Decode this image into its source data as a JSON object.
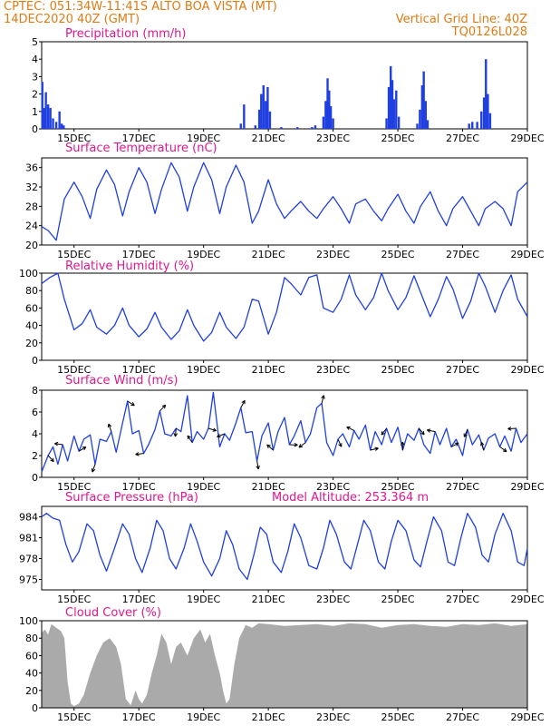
{
  "header": {
    "line1_left": "CPTEC:   051:34W-11:41S   ALTO BOA VISTA (MT)",
    "line2_left": "14DEC2020 40Z (GMT)",
    "line2_right": "Vertical Grid Line: 40Z",
    "line3_right": "TQ0126L028"
  },
  "colors": {
    "header": "#e07a12",
    "title": "#e0188c",
    "series": "#1f3fe0",
    "cloud": "#aaaaaa"
  },
  "date_ticks": [
    "15DEC",
    "17DEC",
    "19DEC",
    "21DEC",
    "23DEC",
    "25DEC",
    "27DEC",
    "29DEC"
  ],
  "chart_data": [
    {
      "type": "bar",
      "title": "Precipitation (mm/h)",
      "ylim": [
        0,
        5
      ],
      "yticks": [
        "0",
        "1",
        "2",
        "3",
        "4",
        "5"
      ],
      "x_unit": "day",
      "xlim": [
        14.0,
        29.0
      ],
      "events": [
        {
          "x": 14.02,
          "y": 2.7
        },
        {
          "x": 14.08,
          "y": 1.2
        },
        {
          "x": 14.13,
          "y": 2.1
        },
        {
          "x": 14.2,
          "y": 1.4
        },
        {
          "x": 14.27,
          "y": 1.2
        },
        {
          "x": 14.35,
          "y": 0.6
        },
        {
          "x": 14.45,
          "y": 0.4
        },
        {
          "x": 14.55,
          "y": 1.0
        },
        {
          "x": 14.62,
          "y": 0.3
        },
        {
          "x": 14.68,
          "y": 0.2
        },
        {
          "x": 20.15,
          "y": 0.3
        },
        {
          "x": 20.25,
          "y": 1.4
        },
        {
          "x": 20.6,
          "y": 0.2
        },
        {
          "x": 20.72,
          "y": 1.1
        },
        {
          "x": 20.78,
          "y": 2.0
        },
        {
          "x": 20.85,
          "y": 2.5
        },
        {
          "x": 20.92,
          "y": 1.6
        },
        {
          "x": 20.98,
          "y": 2.4
        },
        {
          "x": 21.05,
          "y": 1.0
        },
        {
          "x": 21.4,
          "y": 0.1
        },
        {
          "x": 21.9,
          "y": 0.1
        },
        {
          "x": 22.35,
          "y": 0.1
        },
        {
          "x": 22.45,
          "y": 0.2
        },
        {
          "x": 22.7,
          "y": 0.7
        },
        {
          "x": 22.77,
          "y": 1.6
        },
        {
          "x": 22.83,
          "y": 2.9
        },
        {
          "x": 22.88,
          "y": 2.2
        },
        {
          "x": 22.93,
          "y": 1.3
        },
        {
          "x": 23.0,
          "y": 0.6
        },
        {
          "x": 24.65,
          "y": 0.6
        },
        {
          "x": 24.72,
          "y": 2.4
        },
        {
          "x": 24.78,
          "y": 3.6
        },
        {
          "x": 24.83,
          "y": 2.8
        },
        {
          "x": 24.88,
          "y": 1.7
        },
        {
          "x": 24.95,
          "y": 2.2
        },
        {
          "x": 25.03,
          "y": 0.7
        },
        {
          "x": 25.6,
          "y": 0.3
        },
        {
          "x": 25.68,
          "y": 1.1
        },
        {
          "x": 25.75,
          "y": 2.5
        },
        {
          "x": 25.8,
          "y": 3.3
        },
        {
          "x": 25.86,
          "y": 1.6
        },
        {
          "x": 25.92,
          "y": 0.5
        },
        {
          "x": 27.2,
          "y": 0.3
        },
        {
          "x": 27.3,
          "y": 0.4
        },
        {
          "x": 27.45,
          "y": 0.4
        },
        {
          "x": 27.58,
          "y": 1.0
        },
        {
          "x": 27.66,
          "y": 1.8
        },
        {
          "x": 27.72,
          "y": 4.0
        },
        {
          "x": 27.78,
          "y": 2.0
        },
        {
          "x": 27.85,
          "y": 0.9
        }
      ]
    },
    {
      "type": "line",
      "title": "Surface Temperature (nC)",
      "ylim": [
        20,
        38
      ],
      "yticks": [
        "20",
        "24",
        "28",
        "32",
        "36"
      ],
      "x_unit": "day",
      "xlim": [
        14.0,
        29.0
      ],
      "x": [
        14.0,
        14.2,
        14.45,
        14.7,
        15.0,
        15.25,
        15.5,
        15.7,
        16.0,
        16.25,
        16.5,
        16.7,
        17.0,
        17.25,
        17.5,
        17.7,
        18.0,
        18.25,
        18.5,
        18.7,
        19.0,
        19.25,
        19.5,
        19.7,
        20.0,
        20.25,
        20.5,
        20.7,
        21.0,
        21.25,
        21.5,
        21.7,
        22.0,
        22.25,
        22.5,
        22.7,
        23.0,
        23.25,
        23.5,
        23.7,
        24.0,
        24.25,
        24.5,
        24.7,
        25.0,
        25.25,
        25.5,
        25.7,
        26.0,
        26.25,
        26.5,
        26.7,
        27.0,
        27.25,
        27.5,
        27.7,
        28.0,
        28.25,
        28.5,
        28.7,
        29.0
      ],
      "y": [
        23.8,
        23.0,
        21.0,
        29.5,
        33.0,
        30.0,
        25.5,
        31.5,
        35.5,
        32.5,
        26.0,
        31.0,
        36.0,
        33.0,
        26.5,
        31.5,
        37.0,
        34.0,
        27.0,
        32.0,
        37.0,
        33.5,
        26.5,
        32.0,
        36.5,
        33.0,
        24.5,
        27.0,
        33.5,
        28.5,
        25.5,
        27.0,
        29.0,
        27.0,
        25.5,
        27.5,
        30.0,
        27.5,
        24.5,
        28.5,
        29.5,
        27.0,
        25.0,
        27.5,
        30.5,
        27.0,
        24.5,
        28.0,
        31.0,
        27.0,
        24.0,
        27.5,
        30.0,
        27.0,
        24.0,
        27.5,
        29.0,
        27.5,
        24.0,
        31.0,
        33.0
      ]
    },
    {
      "type": "line",
      "title": "Relative Humidity (%)",
      "ylim": [
        0,
        100
      ],
      "yticks": [
        "0",
        "20",
        "40",
        "60",
        "80",
        "100"
      ],
      "x_unit": "day",
      "xlim": [
        14.0,
        29.0
      ],
      "x": [
        14.0,
        14.25,
        14.5,
        14.7,
        15.0,
        15.25,
        15.5,
        15.7,
        16.0,
        16.25,
        16.5,
        16.7,
        17.0,
        17.25,
        17.5,
        17.7,
        18.0,
        18.25,
        18.5,
        18.7,
        19.0,
        19.25,
        19.5,
        19.7,
        20.0,
        20.25,
        20.5,
        20.7,
        21.0,
        21.25,
        21.5,
        21.7,
        22.0,
        22.25,
        22.5,
        22.7,
        23.0,
        23.25,
        23.5,
        23.7,
        24.0,
        24.25,
        24.5,
        24.7,
        25.0,
        25.25,
        25.5,
        25.7,
        26.0,
        26.25,
        26.5,
        26.7,
        27.0,
        27.25,
        27.5,
        27.7,
        28.0,
        28.25,
        28.5,
        28.7,
        29.0
      ],
      "y": [
        88,
        95,
        100,
        70,
        35,
        42,
        58,
        38,
        30,
        40,
        60,
        40,
        27,
        36,
        55,
        38,
        24,
        34,
        58,
        40,
        22,
        32,
        55,
        38,
        25,
        38,
        70,
        68,
        30,
        55,
        95,
        88,
        75,
        95,
        98,
        60,
        55,
        70,
        98,
        75,
        58,
        72,
        100,
        80,
        58,
        72,
        97,
        78,
        50,
        70,
        96,
        82,
        48,
        68,
        100,
        85,
        55,
        80,
        98,
        70,
        50
      ]
    },
    {
      "type": "line",
      "title": "Surface Wind (m/s)",
      "ylim": [
        0,
        8
      ],
      "yticks": [
        "0",
        "2",
        "4",
        "6",
        "8"
      ],
      "x_unit": "day",
      "xlim": [
        14.0,
        29.0
      ],
      "x": [
        14.0,
        14.2,
        14.35,
        14.5,
        14.65,
        14.8,
        15.0,
        15.15,
        15.3,
        15.5,
        15.65,
        15.8,
        16.0,
        16.15,
        16.3,
        16.5,
        16.65,
        16.8,
        17.0,
        17.15,
        17.3,
        17.5,
        17.65,
        17.8,
        18.0,
        18.15,
        18.3,
        18.5,
        18.65,
        18.8,
        19.0,
        19.15,
        19.3,
        19.5,
        19.65,
        19.8,
        20.0,
        20.15,
        20.3,
        20.5,
        20.65,
        20.8,
        21.0,
        21.15,
        21.3,
        21.5,
        21.65,
        21.8,
        22.0,
        22.15,
        22.3,
        22.5,
        22.65,
        22.8,
        23.0,
        23.15,
        23.3,
        23.5,
        23.65,
        23.8,
        24.0,
        24.15,
        24.3,
        24.5,
        24.65,
        24.8,
        25.0,
        25.15,
        25.3,
        25.5,
        25.65,
        25.8,
        26.0,
        26.15,
        26.3,
        26.5,
        26.65,
        26.8,
        27.0,
        27.15,
        27.3,
        27.5,
        27.65,
        27.8,
        28.0,
        28.15,
        28.3,
        28.5,
        28.65,
        28.8,
        29.0
      ],
      "y": [
        0.5,
        2.0,
        2.8,
        1.2,
        3.0,
        1.5,
        3.8,
        2.4,
        3.5,
        3.9,
        1.2,
        3.5,
        3.3,
        4.2,
        2.3,
        5.0,
        7.0,
        4.0,
        4.3,
        2.2,
        3.0,
        4.4,
        6.1,
        4.0,
        3.8,
        4.5,
        4.2,
        7.5,
        3.2,
        4.2,
        3.5,
        4.5,
        7.8,
        2.8,
        4.0,
        3.4,
        5.0,
        6.4,
        4.1,
        4.2,
        1.5,
        3.8,
        5.0,
        2.5,
        4.2,
        5.5,
        3.0,
        3.8,
        5.2,
        3.2,
        4.0,
        6.4,
        6.8,
        3.2,
        2.0,
        3.5,
        4.0,
        2.8,
        4.3,
        3.5,
        4.8,
        2.5,
        4.2,
        3.0,
        4.5,
        3.2,
        4.6,
        2.5,
        4.0,
        3.4,
        4.5,
        3.0,
        2.2,
        4.2,
        3.0,
        4.5,
        2.8,
        3.5,
        2.0,
        4.4,
        3.0,
        3.9,
        2.5,
        3.6,
        4.0,
        2.8,
        3.8,
        2.4,
        4.5,
        3.2,
        4.0
      ]
    },
    {
      "type": "line",
      "title": "Surface Pressure (hPa)",
      "subtitle": "Model Altitude: 253.364 m",
      "ylim": [
        973.5,
        985.5
      ],
      "yticks": [
        "975",
        "978",
        "981",
        "984"
      ],
      "x_unit": "day",
      "xlim": [
        14.0,
        29.0
      ],
      "x": [
        14.0,
        14.15,
        14.35,
        14.55,
        14.75,
        14.95,
        15.15,
        15.4,
        15.6,
        15.8,
        16.0,
        16.25,
        16.5,
        16.7,
        16.9,
        17.1,
        17.35,
        17.55,
        17.75,
        17.95,
        18.15,
        18.4,
        18.6,
        18.8,
        19.0,
        19.25,
        19.5,
        19.7,
        19.9,
        20.1,
        20.35,
        20.55,
        20.75,
        20.95,
        21.15,
        21.4,
        21.6,
        21.8,
        22.0,
        22.25,
        22.5,
        22.7,
        22.9,
        23.1,
        23.35,
        23.55,
        23.75,
        23.95,
        24.15,
        24.4,
        24.6,
        24.8,
        25.0,
        25.25,
        25.5,
        25.7,
        25.9,
        26.1,
        26.35,
        26.55,
        26.75,
        26.95,
        27.15,
        27.4,
        27.6,
        27.8,
        28.0,
        28.25,
        28.5,
        28.7,
        28.9,
        29.0
      ],
      "y": [
        984.0,
        984.5,
        983.8,
        983.5,
        980.0,
        977.5,
        979.0,
        983.0,
        982.0,
        978.5,
        976.2,
        979.5,
        983.0,
        981.5,
        978.0,
        976.0,
        979.5,
        983.5,
        982.0,
        978.0,
        976.5,
        979.5,
        983.0,
        980.5,
        977.5,
        975.5,
        978.0,
        982.0,
        980.0,
        976.5,
        975.0,
        978.5,
        982.5,
        981.5,
        977.5,
        976.0,
        979.0,
        983.0,
        981.0,
        977.0,
        976.5,
        979.5,
        983.5,
        981.5,
        977.5,
        976.5,
        980.0,
        983.5,
        982.0,
        977.5,
        976.5,
        980.5,
        983.5,
        982.0,
        977.8,
        976.8,
        980.5,
        984.0,
        982.0,
        977.5,
        977.0,
        981.0,
        984.5,
        982.5,
        978.5,
        977.5,
        981.5,
        984.5,
        982.0,
        977.5,
        977.0,
        979.5
      ]
    },
    {
      "type": "area",
      "title": "Cloud Cover (%)",
      "ylim": [
        0,
        100
      ],
      "yticks": [
        "0",
        "20",
        "40",
        "60",
        "80",
        "100"
      ],
      "x_unit": "day",
      "xlim": [
        14.0,
        29.0
      ],
      "x": [
        14.0,
        14.1,
        14.2,
        14.3,
        14.45,
        14.6,
        14.7,
        14.8,
        14.9,
        15.0,
        15.15,
        15.3,
        15.5,
        15.7,
        15.9,
        16.1,
        16.3,
        16.45,
        16.6,
        16.75,
        16.9,
        17.0,
        17.1,
        17.25,
        17.4,
        17.55,
        17.7,
        17.85,
        18.0,
        18.15,
        18.3,
        18.5,
        18.7,
        18.9,
        19.05,
        19.2,
        19.35,
        19.5,
        19.6,
        19.7,
        19.8,
        19.95,
        20.1,
        20.3,
        20.5,
        20.7,
        21.0,
        21.5,
        22.0,
        22.5,
        23.0,
        23.5,
        24.0,
        24.5,
        25.0,
        25.5,
        26.0,
        26.5,
        27.0,
        27.5,
        28.0,
        28.5,
        29.0
      ],
      "y": [
        86,
        90,
        84,
        96,
        92,
        88,
        80,
        30,
        5,
        2,
        5,
        15,
        40,
        60,
        75,
        80,
        70,
        50,
        10,
        3,
        20,
        10,
        5,
        15,
        40,
        60,
        85,
        75,
        50,
        70,
        75,
        60,
        80,
        90,
        75,
        85,
        60,
        40,
        20,
        5,
        10,
        50,
        80,
        95,
        92,
        97,
        96,
        94,
        95,
        96,
        94,
        97,
        96,
        92,
        95,
        96,
        94,
        93,
        96,
        95,
        97,
        94,
        96
      ]
    }
  ]
}
